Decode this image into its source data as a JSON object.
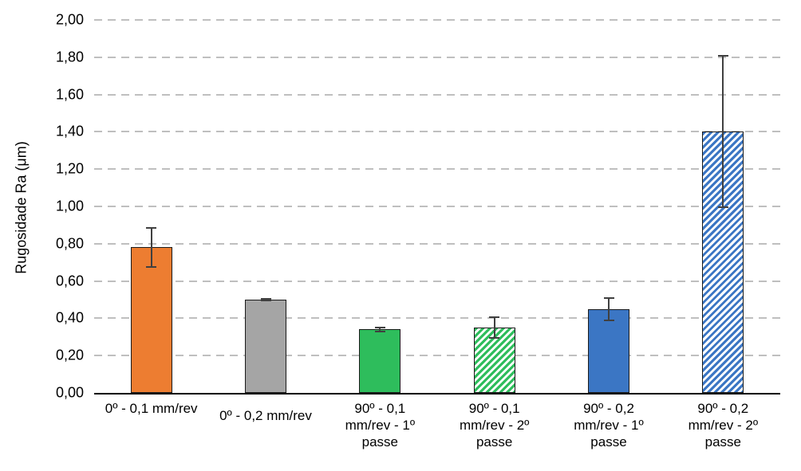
{
  "chart_data": {
    "type": "bar",
    "title": "",
    "ylabel": "Rugosidade Ra (μm)",
    "xlabel": "",
    "ylim": [
      0,
      2.0
    ],
    "ytick_interval": 0.2,
    "ytick_labels": [
      "0,00",
      "0,20",
      "0,40",
      "0,60",
      "0,80",
      "1,00",
      "1,20",
      "1,40",
      "1,60",
      "1,80",
      "2,00"
    ],
    "decimal_separator": ",",
    "grid": {
      "horizontal": true,
      "style": "dashed",
      "color": "#BFBFBF"
    },
    "legend": "none",
    "axis_color": "#000000",
    "error_bar_color": "#404040",
    "categories": [
      "0º - 0,1 mm/rev",
      "0º - 0,2 mm/rev",
      "90º - 0,1\nmm/rev - 1º\npasse",
      "90º - 0,1\nmm/rev - 2º\npasse",
      "90º - 0,2\nmm/rev - 1º\npasse",
      "90º - 0,2\nmm/rev - 2º\npasse"
    ],
    "values": [
      0.78,
      0.5,
      0.34,
      0.35,
      0.45,
      1.4
    ],
    "errors": [
      0.11,
      0.01,
      0.015,
      0.06,
      0.065,
      0.41
    ],
    "bars": [
      {
        "category": "0º - 0,1 mm/rev",
        "value": 0.78,
        "error": 0.11,
        "color": "#ED7D31",
        "pattern": "solid"
      },
      {
        "category": "0º - 0,2 mm/rev",
        "value": 0.5,
        "error": 0.01,
        "color": "#A5A5A5",
        "pattern": "solid"
      },
      {
        "category": "90º - 0,1\nmm/rev - 1º\npasse",
        "value": 0.34,
        "error": 0.015,
        "color": "#2EBD5C",
        "pattern": "solid"
      },
      {
        "category": "90º - 0,1\nmm/rev - 2º\npasse",
        "value": 0.35,
        "error": 0.06,
        "color": "#2EBD5C",
        "pattern": "diagonal-hatch"
      },
      {
        "category": "90º - 0,2\nmm/rev - 1º\npasse",
        "value": 0.45,
        "error": 0.065,
        "color": "#3B76C4",
        "pattern": "solid"
      },
      {
        "category": "90º - 0,2\nmm/rev - 2º\npasse",
        "value": 1.4,
        "error": 0.41,
        "color": "#3B76C4",
        "pattern": "diagonal-hatch"
      }
    ]
  }
}
